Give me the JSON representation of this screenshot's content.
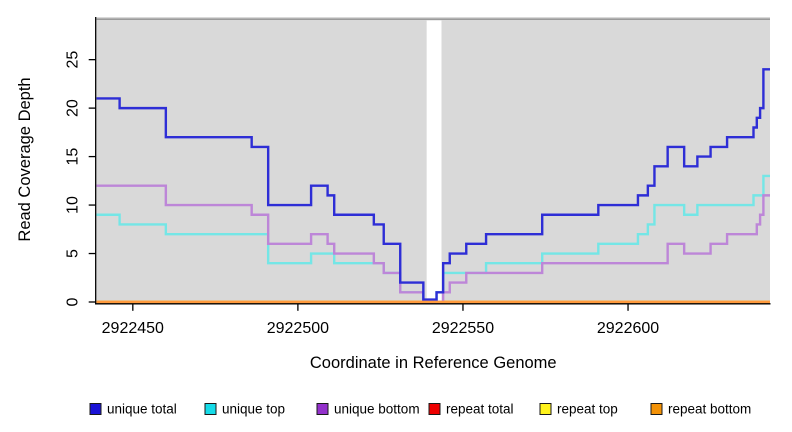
{
  "figure": {
    "background": "#ffffff",
    "axis_color": "#000000",
    "top_border_color": "#9a9a9a"
  },
  "chart_data": {
    "type": "line",
    "step": "post",
    "title": "",
    "xlabel": "Coordinate in Reference Genome",
    "ylabel": "Read Coverage Depth",
    "xlim": [
      2922439,
      2922643
    ],
    "ylim": [
      0,
      29.4
    ],
    "x_ticks": [
      2922450,
      2922500,
      2922550,
      2922600
    ],
    "y_ticks": [
      0,
      5,
      10,
      15,
      20,
      25
    ],
    "grid": false,
    "plot_bg": "#d9d9d9",
    "gap_band": {
      "x_start": 2922539,
      "x_end": 2922543.5,
      "color": "#ffffff"
    },
    "legend_position": "bottom",
    "series": [
      {
        "name": "unique total",
        "color": "#2e2ed6",
        "swatch": "#1a12d6",
        "steps": [
          [
            2922439,
            21
          ],
          [
            2922446,
            20
          ],
          [
            2922460,
            17
          ],
          [
            2922486,
            16
          ],
          [
            2922491,
            10
          ],
          [
            2922504,
            12
          ],
          [
            2922509,
            11
          ],
          [
            2922511,
            9
          ],
          [
            2922523,
            8
          ],
          [
            2922526,
            6
          ],
          [
            2922531,
            2
          ],
          [
            2922538,
            0
          ],
          [
            2922542,
            1
          ],
          [
            2922544,
            4
          ],
          [
            2922546,
            5
          ],
          [
            2922551,
            6
          ],
          [
            2922557,
            7
          ],
          [
            2922574,
            9
          ],
          [
            2922591,
            10
          ],
          [
            2922603,
            11
          ],
          [
            2922606,
            12
          ],
          [
            2922608,
            14
          ],
          [
            2922612,
            16
          ],
          [
            2922617,
            14
          ],
          [
            2922621,
            15
          ],
          [
            2922625,
            16
          ],
          [
            2922630,
            17
          ],
          [
            2922638,
            18
          ],
          [
            2922639,
            19
          ],
          [
            2922640,
            20
          ],
          [
            2922641,
            24
          ]
        ]
      },
      {
        "name": "unique top",
        "color": "#74e6e6",
        "swatch": "#16dbe8",
        "steps": [
          [
            2922439,
            9
          ],
          [
            2922446,
            8
          ],
          [
            2922460,
            7
          ],
          [
            2922491,
            4
          ],
          [
            2922504,
            5
          ],
          [
            2922511,
            4
          ],
          [
            2922526,
            3
          ],
          [
            2922531,
            1
          ],
          [
            2922538,
            0
          ],
          [
            2922542,
            1
          ],
          [
            2922544,
            3
          ],
          [
            2922557,
            4
          ],
          [
            2922574,
            5
          ],
          [
            2922591,
            6
          ],
          [
            2922603,
            7
          ],
          [
            2922606,
            8
          ],
          [
            2922608,
            10
          ],
          [
            2922617,
            9
          ],
          [
            2922621,
            10
          ],
          [
            2922638,
            11
          ],
          [
            2922641,
            13
          ]
        ]
      },
      {
        "name": "unique bottom",
        "color": "#bd86d8",
        "swatch": "#9331cb",
        "steps": [
          [
            2922439,
            12
          ],
          [
            2922460,
            10
          ],
          [
            2922486,
            9
          ],
          [
            2922491,
            6
          ],
          [
            2922504,
            7
          ],
          [
            2922509,
            6
          ],
          [
            2922511,
            5
          ],
          [
            2922523,
            4
          ],
          [
            2922526,
            3
          ],
          [
            2922531,
            1
          ],
          [
            2922538,
            0
          ],
          [
            2922544,
            1
          ],
          [
            2922546,
            2
          ],
          [
            2922551,
            3
          ],
          [
            2922574,
            4
          ],
          [
            2922612,
            6
          ],
          [
            2922617,
            5
          ],
          [
            2922625,
            6
          ],
          [
            2922630,
            7
          ],
          [
            2922639,
            8
          ],
          [
            2922640,
            9
          ],
          [
            2922641,
            11
          ]
        ]
      },
      {
        "name": "repeat total",
        "color": "#e00000",
        "swatch": "#ee0000",
        "steps": [
          [
            2922439,
            0
          ]
        ]
      },
      {
        "name": "repeat top",
        "color": "#fff315",
        "swatch": "#fff31c",
        "steps": [
          [
            2922439,
            0
          ]
        ]
      },
      {
        "name": "repeat bottom",
        "color": "#ff9a3d",
        "swatch": "#f39207",
        "steps": [
          [
            2922439,
            0
          ]
        ]
      }
    ]
  }
}
